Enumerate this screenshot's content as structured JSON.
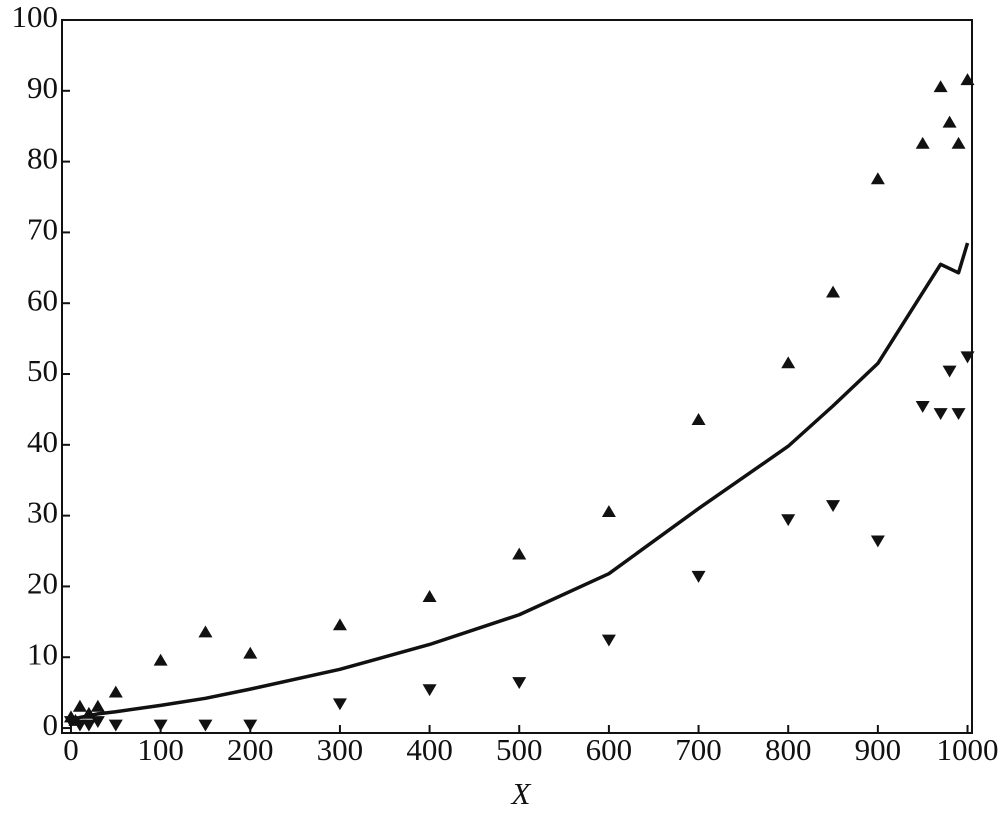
{
  "chart_data": {
    "type": "scatter",
    "x_label": "X",
    "xlim": [
      -10,
      1005
    ],
    "ylim": [
      -0.7,
      100
    ],
    "xticks": [
      0,
      100,
      200,
      300,
      400,
      500,
      600,
      700,
      800,
      900,
      1000
    ],
    "yticks": [
      0,
      10,
      20,
      30,
      40,
      50,
      60,
      70,
      80,
      90,
      100
    ],
    "grid": false,
    "series": [
      {
        "mode": "markers",
        "marker": "triangle-up",
        "color": "#111111",
        "x": [
          0,
          5,
          10,
          20,
          30,
          50,
          100,
          150,
          200,
          300,
          400,
          500,
          600,
          700,
          800,
          850,
          900,
          950,
          970,
          980,
          990,
          1000
        ],
        "values": [
          1.5,
          1,
          3,
          2,
          3,
          5,
          9.5,
          13.5,
          10.5,
          14.5,
          18.5,
          24.5,
          30.5,
          43.5,
          51.5,
          61.5,
          77.5,
          82.5,
          90.5,
          85.5,
          82.5,
          91.5
        ]
      },
      {
        "mode": "markers",
        "marker": "triangle-down",
        "color": "#111111",
        "x": [
          0,
          10,
          20,
          30,
          50,
          100,
          150,
          200,
          300,
          400,
          500,
          600,
          700,
          800,
          850,
          900,
          950,
          970,
          980,
          990,
          1000
        ],
        "values": [
          1,
          0.5,
          0.5,
          1,
          0.5,
          0.5,
          0.5,
          0.5,
          3.5,
          5.5,
          6.5,
          12.5,
          21.5,
          29.5,
          31.5,
          26.5,
          45.5,
          44.5,
          50.5,
          44.5,
          52.5
        ]
      },
      {
        "mode": "line",
        "color": "#111111",
        "x": [
          0,
          10,
          30,
          50,
          100,
          150,
          200,
          300,
          400,
          500,
          600,
          700,
          800,
          850,
          900,
          950,
          970,
          990,
          1000
        ],
        "values": [
          1,
          1.5,
          2,
          2.3,
          3.2,
          4.2,
          5.5,
          8.3,
          11.8,
          16,
          21.8,
          31,
          39.8,
          45.5,
          51.5,
          61.5,
          65.5,
          64.3,
          68.5
        ]
      }
    ]
  }
}
